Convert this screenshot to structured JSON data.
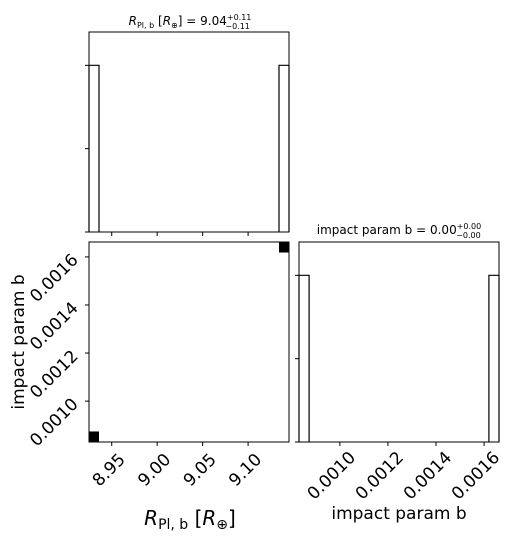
{
  "chart_data": [
    {
      "id": "hist_radius",
      "type": "histogram",
      "title": {
        "prefix": "R",
        "sub": "Pl, b",
        "unit_open": "[",
        "unit_var": "R",
        "unit_sub": "⊕",
        "unit_close": "]",
        "eq": "= 9.04",
        "sup": "+0.11",
        "subscript": "−0.11"
      },
      "x_range": [
        8.925,
        9.145
      ],
      "bins": [
        [
          8.925,
          8.936,
          1
        ],
        [
          9.134,
          9.145,
          1
        ]
      ],
      "ylim": [
        0,
        1.2
      ],
      "yticks": [
        0,
        0.5,
        1.0
      ]
    },
    {
      "id": "hist_impact",
      "type": "histogram",
      "title": {
        "label": "impact param b",
        "eq": "= 0.00",
        "sup": "+0.00",
        "subscript": "−0.00"
      },
      "x_range": [
        0.00083,
        0.001662
      ],
      "bins": [
        [
          0.00083,
          0.000872,
          1
        ],
        [
          0.00162,
          0.001662,
          1
        ]
      ],
      "ylim": [
        0,
        1.2
      ]
    },
    {
      "id": "scatter_joint",
      "type": "scatter",
      "x_range": [
        8.925,
        9.145
      ],
      "y_range": [
        0.00083,
        0.001662
      ],
      "points": [
        [
          8.9305,
          0.000853
        ],
        [
          9.1395,
          0.001639
        ]
      ],
      "xticks": [
        8.95,
        9.0,
        9.05,
        9.1
      ],
      "xtick_labels": [
        "8.95",
        "9.00",
        "9.05",
        "9.10"
      ],
      "yticks": [
        0.001,
        0.0012,
        0.0014,
        0.0016
      ],
      "ytick_labels": [
        "0.0010",
        "0.0012",
        "0.0014",
        "0.0016"
      ],
      "xlabel": {
        "var": "R",
        "sub": "Pl, b",
        "unit_open": "[",
        "unit_var": "R",
        "unit_sub": "⊕",
        "unit_close": "]"
      },
      "ylabel": "impact param b"
    },
    {
      "id": "impact_axis",
      "xticks": [
        0.001,
        0.0012,
        0.0014,
        0.0016
      ],
      "xtick_labels": [
        "0.0010",
        "0.0012",
        "0.0014",
        "0.0016"
      ],
      "xlabel": "impact param b"
    }
  ]
}
